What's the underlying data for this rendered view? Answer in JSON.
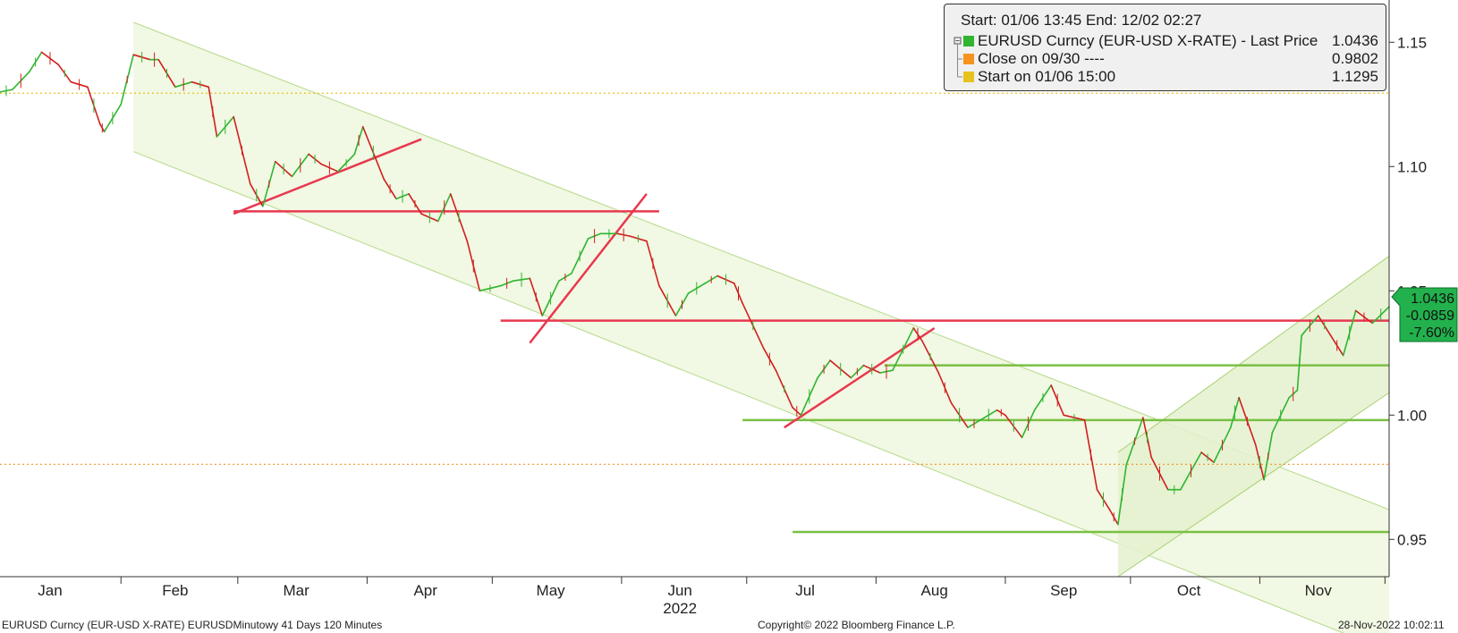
{
  "legend": {
    "title": "Start: 01/06 13:45 End: 12/02 02:27",
    "items": [
      {
        "label": "EURUSD Curncy (EUR-USD X-RATE) - Last Price",
        "value": "1.0436",
        "color": "#2fb52f"
      },
      {
        "label": "Close on 09/30 ----",
        "value": "0.9802",
        "color": "#f5931e"
      },
      {
        "label": "Start on 01/06 15:00",
        "value": "1.1295",
        "color": "#e6c21e"
      }
    ]
  },
  "price_tag": {
    "last": "1.0436",
    "change": "-0.0859",
    "pct": "-7.60%"
  },
  "footer": {
    "left": "EURUSD Curncy (EUR-USD X-RATE) EURUSDMinutowy 41 Days 120 Minutes",
    "center": "Copyright© 2022 Bloomberg Finance L.P.",
    "right": "28-Nov-2022 10:02:11"
  },
  "chart_data": {
    "type": "line",
    "title": "",
    "xlabel": "",
    "ylabel": "",
    "x_axis": {
      "range": [
        "2022-01-03",
        "2022-12-02"
      ],
      "month_labels": [
        {
          "label": "Jan",
          "date": "2022-01-15"
        },
        {
          "label": "Feb",
          "date": "2022-02-14"
        },
        {
          "label": "Mar",
          "date": "2022-03-15"
        },
        {
          "label": "Apr",
          "date": "2022-04-15"
        },
        {
          "label": "May",
          "date": "2022-05-15"
        },
        {
          "label": "Jun",
          "date": "2022-06-15"
        },
        {
          "label": "Jul",
          "date": "2022-07-15"
        },
        {
          "label": "Aug",
          "date": "2022-08-15"
        },
        {
          "label": "Sep",
          "date": "2022-09-15"
        },
        {
          "label": "Oct",
          "date": "2022-10-15"
        },
        {
          "label": "Nov",
          "date": "2022-11-15"
        }
      ],
      "year_label": "2022"
    },
    "y_axis": {
      "range": [
        0.935,
        1.167
      ],
      "ticks": [
        0.95,
        1.0,
        1.05,
        1.1,
        1.15
      ],
      "tick_labels": [
        "0.95",
        "1.00",
        "1.05",
        "1.10",
        "1.15"
      ],
      "position": "right"
    },
    "series": [
      {
        "name": "EURUSD Curncy (EUR-USD X-RATE) - Last Price",
        "color": "#2fb52f",
        "down_color": "#d02020",
        "points": [
          [
            "2022-01-03",
            1.13
          ],
          [
            "2022-01-06",
            1.131
          ],
          [
            "2022-01-10",
            1.138
          ],
          [
            "2022-01-13",
            1.146
          ],
          [
            "2022-01-17",
            1.141
          ],
          [
            "2022-01-20",
            1.134
          ],
          [
            "2022-01-24",
            1.132
          ],
          [
            "2022-01-27",
            1.117
          ],
          [
            "2022-01-28",
            1.114
          ],
          [
            "2022-02-01",
            1.125
          ],
          [
            "2022-02-04",
            1.145
          ],
          [
            "2022-02-08",
            1.143
          ],
          [
            "2022-02-10",
            1.143
          ],
          [
            "2022-02-14",
            1.132
          ],
          [
            "2022-02-18",
            1.134
          ],
          [
            "2022-02-22",
            1.132
          ],
          [
            "2022-02-24",
            1.112
          ],
          [
            "2022-02-28",
            1.12
          ],
          [
            "2022-03-04",
            1.093
          ],
          [
            "2022-03-07",
            1.084
          ],
          [
            "2022-03-10",
            1.102
          ],
          [
            "2022-03-14",
            1.096
          ],
          [
            "2022-03-18",
            1.105
          ],
          [
            "2022-03-21",
            1.101
          ],
          [
            "2022-03-25",
            1.098
          ],
          [
            "2022-03-29",
            1.105
          ],
          [
            "2022-03-31",
            1.116
          ],
          [
            "2022-04-05",
            1.095
          ],
          [
            "2022-04-08",
            1.087
          ],
          [
            "2022-04-11",
            1.089
          ],
          [
            "2022-04-14",
            1.081
          ],
          [
            "2022-04-18",
            1.078
          ],
          [
            "2022-04-21",
            1.089
          ],
          [
            "2022-04-25",
            1.07
          ],
          [
            "2022-04-28",
            1.05
          ],
          [
            "2022-05-03",
            1.052
          ],
          [
            "2022-05-06",
            1.054
          ],
          [
            "2022-05-10",
            1.055
          ],
          [
            "2022-05-13",
            1.04
          ],
          [
            "2022-05-17",
            1.054
          ],
          [
            "2022-05-20",
            1.057
          ],
          [
            "2022-05-24",
            1.071
          ],
          [
            "2022-05-27",
            1.073
          ],
          [
            "2022-05-31",
            1.073
          ],
          [
            "2022-06-03",
            1.072
          ],
          [
            "2022-06-07",
            1.07
          ],
          [
            "2022-06-10",
            1.052
          ],
          [
            "2022-06-14",
            1.04
          ],
          [
            "2022-06-17",
            1.049
          ],
          [
            "2022-06-21",
            1.053
          ],
          [
            "2022-06-24",
            1.056
          ],
          [
            "2022-06-28",
            1.053
          ],
          [
            "2022-06-30",
            1.045
          ],
          [
            "2022-07-05",
            1.027
          ],
          [
            "2022-07-08",
            1.018
          ],
          [
            "2022-07-12",
            1.003
          ],
          [
            "2022-07-14",
            1.0
          ],
          [
            "2022-07-18",
            1.015
          ],
          [
            "2022-07-21",
            1.022
          ],
          [
            "2022-07-26",
            1.015
          ],
          [
            "2022-07-29",
            1.02
          ],
          [
            "2022-08-02",
            1.017
          ],
          [
            "2022-08-05",
            1.018
          ],
          [
            "2022-08-10",
            1.035
          ],
          [
            "2022-08-12",
            1.03
          ],
          [
            "2022-08-16",
            1.017
          ],
          [
            "2022-08-19",
            1.005
          ],
          [
            "2022-08-23",
            0.995
          ],
          [
            "2022-08-26",
            0.998
          ],
          [
            "2022-08-30",
            1.002
          ],
          [
            "2022-09-01",
            1.0
          ],
          [
            "2022-09-05",
            0.991
          ],
          [
            "2022-09-08",
            1.002
          ],
          [
            "2022-09-12",
            1.012
          ],
          [
            "2022-09-15",
            1.0
          ],
          [
            "2022-09-20",
            0.998
          ],
          [
            "2022-09-23",
            0.97
          ],
          [
            "2022-09-26",
            0.962
          ],
          [
            "2022-09-28",
            0.956
          ],
          [
            "2022-09-30",
            0.98
          ],
          [
            "2022-10-04",
            0.999
          ],
          [
            "2022-10-06",
            0.983
          ],
          [
            "2022-10-10",
            0.97
          ],
          [
            "2022-10-13",
            0.97
          ],
          [
            "2022-10-18",
            0.985
          ],
          [
            "2022-10-21",
            0.981
          ],
          [
            "2022-10-25",
            0.995
          ],
          [
            "2022-10-27",
            1.007
          ],
          [
            "2022-10-31",
            0.988
          ],
          [
            "2022-11-02",
            0.974
          ],
          [
            "2022-11-04",
            0.993
          ],
          [
            "2022-11-08",
            1.007
          ],
          [
            "2022-11-10",
            1.01
          ],
          [
            "2022-11-11",
            1.032
          ],
          [
            "2022-11-15",
            1.04
          ],
          [
            "2022-11-18",
            1.032
          ],
          [
            "2022-11-21",
            1.024
          ],
          [
            "2022-11-24",
            1.042
          ],
          [
            "2022-11-28",
            1.037
          ],
          [
            "2022-12-02",
            1.0436
          ]
        ]
      }
    ],
    "reference_lines": [
      {
        "name": "Start on 01/06 15:00",
        "value": 1.1295,
        "color": "#e6c21e",
        "style": "dotted"
      },
      {
        "name": "Close on 09/30",
        "value": 0.9802,
        "color": "#f5931e",
        "style": "dotted"
      }
    ],
    "annotations": {
      "horizontal_lines": [
        {
          "value": 1.082,
          "from": "2022-02-28",
          "to": "2022-06-10",
          "color": "#e8384f"
        },
        {
          "value": 1.038,
          "from": "2022-05-03",
          "to": "2022-12-02",
          "color": "#e8384f"
        },
        {
          "value": 1.02,
          "from": "2022-08-03",
          "to": "2022-12-02",
          "color": "#7ac043"
        },
        {
          "value": 0.998,
          "from": "2022-06-30",
          "to": "2022-12-02",
          "color": "#7ac043"
        },
        {
          "value": 0.953,
          "from": "2022-07-12",
          "to": "2022-12-02",
          "color": "#7ac043"
        }
      ],
      "trend_lines": [
        {
          "from": [
            "2022-02-28",
            1.081
          ],
          "to": [
            "2022-04-14",
            1.111
          ],
          "color": "#e8384f"
        },
        {
          "from": [
            "2022-05-10",
            1.029
          ],
          "to": [
            "2022-06-07",
            1.089
          ],
          "color": "#e8384f"
        },
        {
          "from": [
            "2022-07-10",
            0.995
          ],
          "to": [
            "2022-08-15",
            1.035
          ],
          "color": "#e8384f"
        }
      ],
      "channels": [
        {
          "upper": [
            [
              "2022-02-04",
              1.158
            ],
            [
              "2022-12-02",
              0.962
            ]
          ],
          "lower": [
            [
              "2022-02-04",
              1.106
            ],
            [
              "2022-12-02",
              0.905
            ]
          ],
          "fill": "#eef7de",
          "stroke": "#b6d98a"
        },
        {
          "upper": [
            [
              "2022-09-28",
              0.985
            ],
            [
              "2022-12-02",
              1.064
            ]
          ],
          "lower": [
            [
              "2022-09-28",
              0.935
            ],
            [
              "2022-12-02",
              1.009
            ]
          ],
          "fill": "#e4f1cf",
          "stroke": "#a8d170"
        }
      ]
    }
  }
}
